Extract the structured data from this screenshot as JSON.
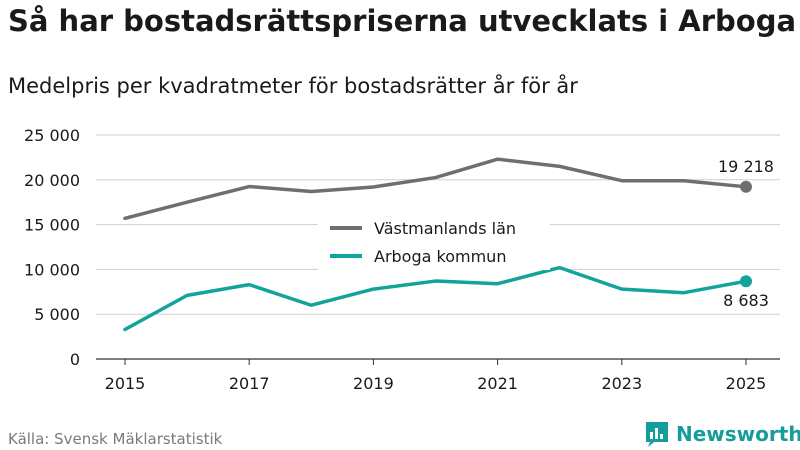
{
  "title": "Så har bostadsrättspriserna utvecklats i Arboga",
  "subtitle": "Medelpris per kvadratmeter för bostadsrätter år för år",
  "source": "Källa: Svensk Mäklarstatistik",
  "brand": {
    "name": "Newsworthy",
    "icon": "bar-chart-logo-icon",
    "color": "#169c9a"
  },
  "chart_data": {
    "type": "line",
    "x": [
      2015,
      2016,
      2017,
      2018,
      2019,
      2020,
      2021,
      2022,
      2023,
      2024,
      2025
    ],
    "x_tick_labels": [
      "2015",
      "2017",
      "2019",
      "2021",
      "2023",
      "2025"
    ],
    "y_tick_labels": [
      "0",
      "5 000",
      "10 000",
      "15 000",
      "20 000",
      "25 000"
    ],
    "ylim": [
      0,
      25000
    ],
    "yticks": [
      0,
      5000,
      10000,
      15000,
      20000,
      25000
    ],
    "grid": true,
    "legend_position": "center",
    "series": [
      {
        "name": "Västmanlands län",
        "color": "#6f6e73",
        "values": [
          15700,
          17500,
          19250,
          18700,
          19200,
          20250,
          22300,
          21500,
          19900,
          19900,
          19218
        ],
        "end_label": "19 218"
      },
      {
        "name": "Arboga kommun",
        "color": "#11a39c",
        "values": [
          3300,
          7100,
          8300,
          6000,
          7800,
          8700,
          8400,
          10200,
          7800,
          7400,
          8683
        ],
        "end_label": "8 683"
      }
    ]
  }
}
